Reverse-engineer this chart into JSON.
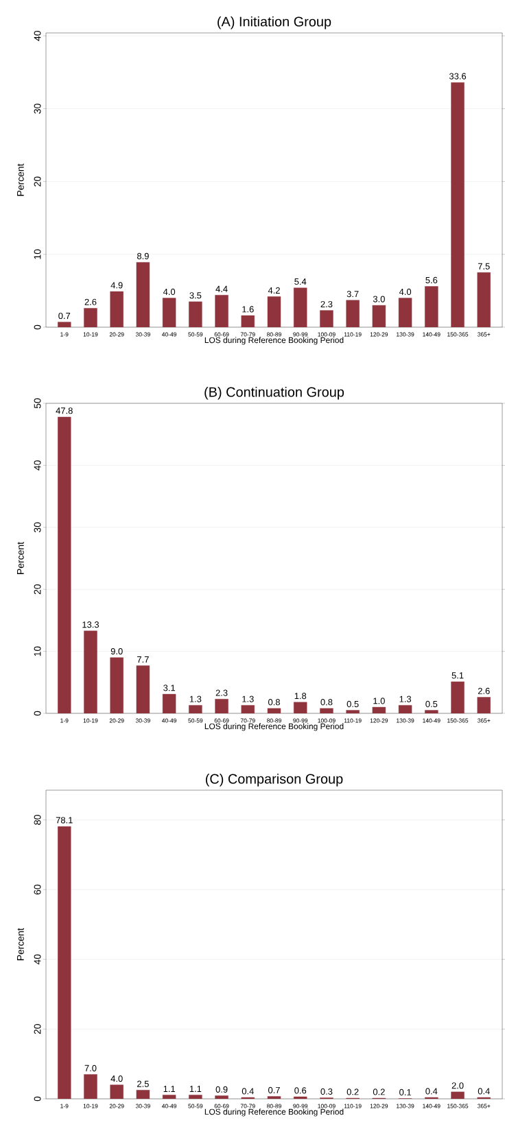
{
  "chart_data": [
    {
      "type": "bar",
      "title": "(A) Initiation Group",
      "xlabel": "LOS during Reference Booking Period",
      "ylabel": "Percent",
      "color": "#8f333c",
      "categories": [
        "1-9",
        "10-19",
        "20-29",
        "30-39",
        "40-49",
        "50-59",
        "60-69",
        "70-79",
        "80-89",
        "90-99",
        "100-09",
        "110-19",
        "120-29",
        "130-39",
        "140-49",
        "150-365",
        "365+"
      ],
      "values": [
        0.7,
        2.6,
        4.9,
        8.9,
        4.0,
        3.5,
        4.4,
        1.6,
        4.2,
        5.4,
        2.3,
        3.7,
        3.0,
        4.0,
        5.6,
        33.6,
        7.5
      ],
      "value_labels": [
        "0.7",
        "2.6",
        "4.9",
        "8.9",
        "4.0",
        "3.5",
        "4.4",
        "1.6",
        "4.2",
        "5.4",
        "2.3",
        "3.7",
        "3.0",
        "4.0",
        "5.6",
        "33.6",
        "7.5"
      ],
      "ylim": [
        0,
        40.4
      ],
      "yticks": [
        0,
        10,
        20,
        30,
        40
      ],
      "grid": "y"
    },
    {
      "type": "bar",
      "title": "(B) Continuation Group",
      "xlabel": "LOS during Reference Booking Period",
      "ylabel": "Percent",
      "color": "#8f333c",
      "categories": [
        "1-9",
        "10-19",
        "20-29",
        "30-39",
        "40-49",
        "50-59",
        "60-69",
        "70-79",
        "80-89",
        "90-99",
        "100-09",
        "110-19",
        "120-29",
        "130-39",
        "140-49",
        "150-365",
        "365+"
      ],
      "values": [
        47.8,
        13.3,
        9.0,
        7.7,
        3.1,
        1.3,
        2.3,
        1.3,
        0.8,
        1.8,
        0.8,
        0.5,
        1.0,
        1.3,
        0.5,
        5.1,
        2.6
      ],
      "value_labels": [
        "47.8",
        "13.3",
        "9.0",
        "7.7",
        "3.1",
        "1.3",
        "2.3",
        "1.3",
        "0.8",
        "1.8",
        "0.8",
        "0.5",
        "1.0",
        "1.3",
        "0.5",
        "5.1",
        "2.6"
      ],
      "ylim": [
        0,
        50
      ],
      "yticks": [
        0,
        10,
        20,
        30,
        40,
        50
      ],
      "grid": "y"
    },
    {
      "type": "bar",
      "title": "(C) Comparison Group",
      "xlabel": "LOS during Reference Booking Period",
      "ylabel": "Percent",
      "color": "#8f333c",
      "categories": [
        "1-9",
        "10-19",
        "20-29",
        "30-39",
        "40-49",
        "50-59",
        "60-69",
        "70-79",
        "80-89",
        "90-99",
        "100-09",
        "110-19",
        "120-29",
        "130-39",
        "140-49",
        "150-365",
        "365+"
      ],
      "values": [
        78.1,
        7.0,
        4.0,
        2.5,
        1.1,
        1.1,
        0.9,
        0.4,
        0.7,
        0.6,
        0.3,
        0.2,
        0.2,
        0.1,
        0.4,
        2.0,
        0.4
      ],
      "value_labels": [
        "78.1",
        "7.0",
        "4.0",
        "2.5",
        "1.1",
        "1.1",
        "0.9",
        "0.4",
        "0.7",
        "0.6",
        "0.3",
        "0.2",
        "0.2",
        "0.1",
        "0.4",
        "2.0",
        "0.4"
      ],
      "ylim": [
        0,
        88.5
      ],
      "yticks": [
        0,
        20,
        40,
        60,
        80
      ],
      "grid": "y"
    }
  ]
}
